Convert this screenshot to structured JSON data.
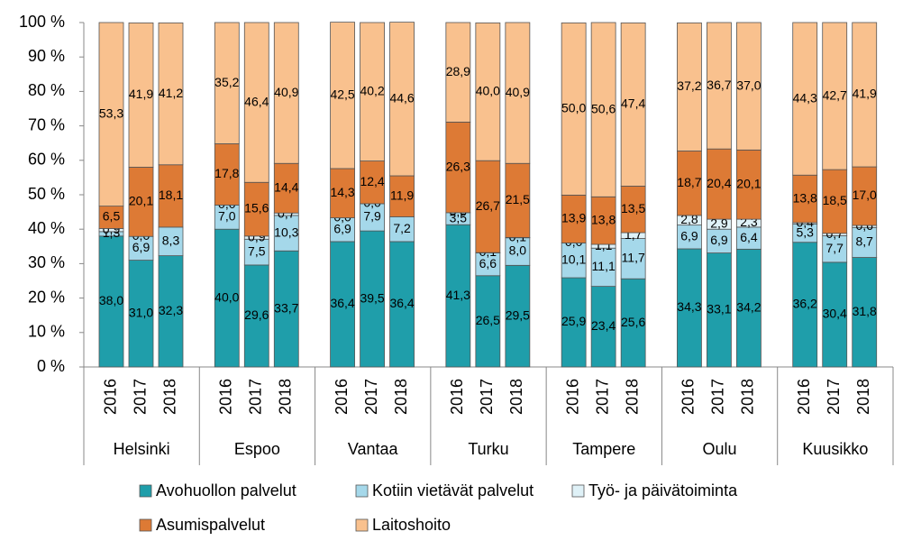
{
  "chart_data": {
    "type": "stacked-bar",
    "groups": [
      "Helsinki",
      "Espoo",
      "Vantaa",
      "Turku",
      "Tampere",
      "Oulu",
      "Kuusikko"
    ],
    "categories": [
      "2016",
      "2017",
      "2018",
      "2016",
      "2017",
      "2018",
      "2016",
      "2017",
      "2018",
      "2016",
      "2017",
      "2018",
      "2016",
      "2017",
      "2018",
      "2016",
      "2017",
      "2018",
      "2016",
      "2017",
      "2018"
    ],
    "ylim": [
      0,
      100
    ],
    "yticks": [
      {
        "value": 0,
        "label": "0 %"
      },
      {
        "value": 10,
        "label": "10 %"
      },
      {
        "value": 20,
        "label": "20 %"
      },
      {
        "value": 30,
        "label": "30 %"
      },
      {
        "value": 40,
        "label": "40 %"
      },
      {
        "value": 50,
        "label": "50 %"
      },
      {
        "value": 60,
        "label": "60 %"
      },
      {
        "value": 70,
        "label": "70 %"
      },
      {
        "value": 80,
        "label": "80 %"
      },
      {
        "value": 90,
        "label": "90 %"
      },
      {
        "value": 100,
        "label": "100 %"
      }
    ],
    "series": [
      {
        "name": "Avohuollon palvelut",
        "color": "#1f9eaa",
        "values": [
          38.0,
          31.0,
          32.3,
          40.0,
          29.6,
          33.7,
          36.4,
          39.5,
          36.4,
          41.3,
          26.5,
          29.5,
          25.9,
          23.4,
          25.6,
          34.3,
          33.1,
          34.2,
          36.2,
          30.4,
          31.8
        ],
        "value_labels": [
          "38,0",
          "31,0",
          "32,3",
          "40,0",
          "29,6",
          "33,7",
          "36,4",
          "39,5",
          "36,4",
          "41,3",
          "26,5",
          "29,5",
          "25,9",
          "23,4",
          "25,6",
          "34,3",
          "33,1",
          "34,2",
          "36,2",
          "30,4",
          "31,8"
        ]
      },
      {
        "name": "Kotiin vietävät palvelut",
        "color": "#a5d8ea",
        "values": [
          1.3,
          6.9,
          8.3,
          7.0,
          7.5,
          10.3,
          6.9,
          7.9,
          7.2,
          3.5,
          6.6,
          8.0,
          10.1,
          11.1,
          11.7,
          6.9,
          6.9,
          6.4,
          5.3,
          7.7,
          8.7
        ],
        "value_labels": [
          "1,3",
          "6,9",
          "8,3",
          "7,0",
          "7,5",
          "10,3",
          "6,9",
          "7,9",
          "7,2",
          "3,5",
          "6,6",
          "8,0",
          "10,1",
          "11,1",
          "11,7",
          "6,9",
          "6,9",
          "6,4",
          "5,3",
          "7,7",
          "8,7"
        ]
      },
      {
        "name": "Työ- ja päivätoiminta",
        "color": "#dff1f7",
        "values": [
          0.9,
          0.0,
          null,
          0.0,
          0.9,
          0.7,
          0.0,
          0.0,
          null,
          0.0,
          0.1,
          0.1,
          0.0,
          1.1,
          1.7,
          2.8,
          2.9,
          2.3,
          0.4,
          0.7,
          0.6
        ],
        "value_labels": [
          "0,9",
          "0,0",
          null,
          "0,0",
          "0,9",
          "0,7",
          "0,0",
          "0,0",
          null,
          "0,0",
          "0,1",
          "0,1",
          "0,0",
          "1,1",
          "1,7",
          "2,8",
          "2,9",
          "2,3",
          "0,4",
          "0,7",
          "0,6"
        ]
      },
      {
        "name": "Asumispalvelut",
        "color": "#dd7a35",
        "values": [
          6.5,
          20.1,
          18.1,
          17.8,
          15.6,
          14.4,
          14.3,
          12.4,
          11.9,
          26.3,
          26.7,
          21.5,
          13.9,
          13.8,
          13.5,
          18.7,
          20.4,
          20.1,
          13.8,
          18.5,
          17.0
        ],
        "value_labels": [
          "6,5",
          "20,1",
          "18,1",
          "17,8",
          "15,6",
          "14,4",
          "14,3",
          "12,4",
          "11,9",
          "26,3",
          "26,7",
          "21,5",
          "13,9",
          "13,8",
          "13,5",
          "18,7",
          "20,4",
          "20,1",
          "13,8",
          "18,5",
          "17,0"
        ]
      },
      {
        "name": "Laitoshoito",
        "color": "#f9c18e",
        "values": [
          53.3,
          41.9,
          41.2,
          35.2,
          46.4,
          40.9,
          42.5,
          40.2,
          44.6,
          28.9,
          40.0,
          40.9,
          50.0,
          50.6,
          47.4,
          37.2,
          36.7,
          37.0,
          44.3,
          42.7,
          41.9
        ],
        "value_labels": [
          "53,3",
          "41,9",
          "41,2",
          "35,2",
          "46,4",
          "40,9",
          "42,5",
          "40,2",
          "44,6",
          "28,9",
          "40,0",
          "40,9",
          "50,0",
          "50,6",
          "47,4",
          "37,2",
          "36,7",
          "37,0",
          "44,3",
          "42,7",
          "41,9"
        ]
      }
    ]
  }
}
